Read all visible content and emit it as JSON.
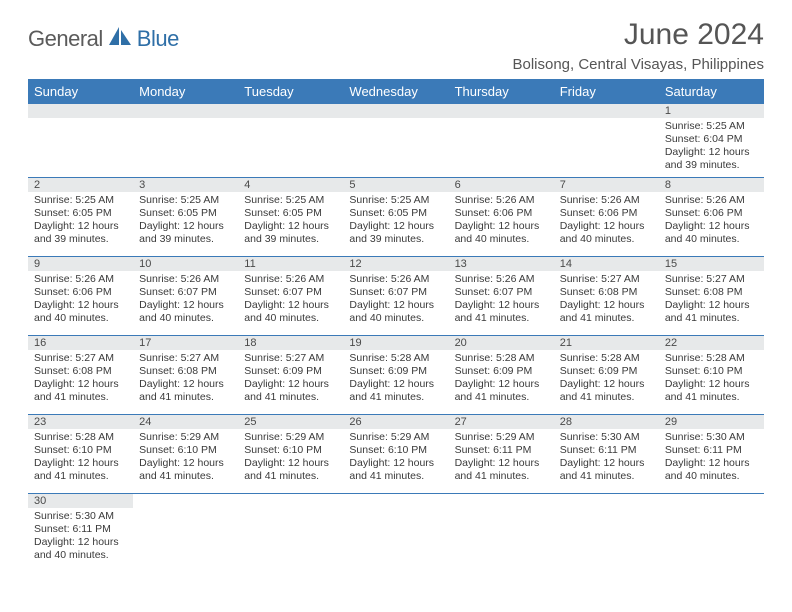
{
  "brand": {
    "part1": "General",
    "part2": "Blue"
  },
  "title": "June 2024",
  "location": "Bolisong, Central Visayas, Philippines",
  "colors": {
    "header_bg": "#3b7ab8",
    "header_text": "#ffffff",
    "daybar_bg": "#e7e9ea",
    "border": "#3b7ab8",
    "page_bg": "#ffffff",
    "text": "#333333",
    "title_text": "#555555"
  },
  "typography": {
    "title_fontsize": 30,
    "location_fontsize": 15,
    "weekday_fontsize": 13,
    "daynum_fontsize": 11,
    "body_fontsize": 10.5,
    "font_family": "Arial"
  },
  "weekdays": [
    "Sunday",
    "Monday",
    "Tuesday",
    "Wednesday",
    "Thursday",
    "Friday",
    "Saturday"
  ],
  "weeks": [
    [
      {
        "n": "",
        "sunrise": "",
        "sunset": "",
        "daylight": ""
      },
      {
        "n": "",
        "sunrise": "",
        "sunset": "",
        "daylight": ""
      },
      {
        "n": "",
        "sunrise": "",
        "sunset": "",
        "daylight": ""
      },
      {
        "n": "",
        "sunrise": "",
        "sunset": "",
        "daylight": ""
      },
      {
        "n": "",
        "sunrise": "",
        "sunset": "",
        "daylight": ""
      },
      {
        "n": "",
        "sunrise": "",
        "sunset": "",
        "daylight": ""
      },
      {
        "n": "1",
        "sunrise": "Sunrise: 5:25 AM",
        "sunset": "Sunset: 6:04 PM",
        "daylight": "Daylight: 12 hours and 39 minutes."
      }
    ],
    [
      {
        "n": "2",
        "sunrise": "Sunrise: 5:25 AM",
        "sunset": "Sunset: 6:05 PM",
        "daylight": "Daylight: 12 hours and 39 minutes."
      },
      {
        "n": "3",
        "sunrise": "Sunrise: 5:25 AM",
        "sunset": "Sunset: 6:05 PM",
        "daylight": "Daylight: 12 hours and 39 minutes."
      },
      {
        "n": "4",
        "sunrise": "Sunrise: 5:25 AM",
        "sunset": "Sunset: 6:05 PM",
        "daylight": "Daylight: 12 hours and 39 minutes."
      },
      {
        "n": "5",
        "sunrise": "Sunrise: 5:25 AM",
        "sunset": "Sunset: 6:05 PM",
        "daylight": "Daylight: 12 hours and 39 minutes."
      },
      {
        "n": "6",
        "sunrise": "Sunrise: 5:26 AM",
        "sunset": "Sunset: 6:06 PM",
        "daylight": "Daylight: 12 hours and 40 minutes."
      },
      {
        "n": "7",
        "sunrise": "Sunrise: 5:26 AM",
        "sunset": "Sunset: 6:06 PM",
        "daylight": "Daylight: 12 hours and 40 minutes."
      },
      {
        "n": "8",
        "sunrise": "Sunrise: 5:26 AM",
        "sunset": "Sunset: 6:06 PM",
        "daylight": "Daylight: 12 hours and 40 minutes."
      }
    ],
    [
      {
        "n": "9",
        "sunrise": "Sunrise: 5:26 AM",
        "sunset": "Sunset: 6:06 PM",
        "daylight": "Daylight: 12 hours and 40 minutes."
      },
      {
        "n": "10",
        "sunrise": "Sunrise: 5:26 AM",
        "sunset": "Sunset: 6:07 PM",
        "daylight": "Daylight: 12 hours and 40 minutes."
      },
      {
        "n": "11",
        "sunrise": "Sunrise: 5:26 AM",
        "sunset": "Sunset: 6:07 PM",
        "daylight": "Daylight: 12 hours and 40 minutes."
      },
      {
        "n": "12",
        "sunrise": "Sunrise: 5:26 AM",
        "sunset": "Sunset: 6:07 PM",
        "daylight": "Daylight: 12 hours and 40 minutes."
      },
      {
        "n": "13",
        "sunrise": "Sunrise: 5:26 AM",
        "sunset": "Sunset: 6:07 PM",
        "daylight": "Daylight: 12 hours and 41 minutes."
      },
      {
        "n": "14",
        "sunrise": "Sunrise: 5:27 AM",
        "sunset": "Sunset: 6:08 PM",
        "daylight": "Daylight: 12 hours and 41 minutes."
      },
      {
        "n": "15",
        "sunrise": "Sunrise: 5:27 AM",
        "sunset": "Sunset: 6:08 PM",
        "daylight": "Daylight: 12 hours and 41 minutes."
      }
    ],
    [
      {
        "n": "16",
        "sunrise": "Sunrise: 5:27 AM",
        "sunset": "Sunset: 6:08 PM",
        "daylight": "Daylight: 12 hours and 41 minutes."
      },
      {
        "n": "17",
        "sunrise": "Sunrise: 5:27 AM",
        "sunset": "Sunset: 6:08 PM",
        "daylight": "Daylight: 12 hours and 41 minutes."
      },
      {
        "n": "18",
        "sunrise": "Sunrise: 5:27 AM",
        "sunset": "Sunset: 6:09 PM",
        "daylight": "Daylight: 12 hours and 41 minutes."
      },
      {
        "n": "19",
        "sunrise": "Sunrise: 5:28 AM",
        "sunset": "Sunset: 6:09 PM",
        "daylight": "Daylight: 12 hours and 41 minutes."
      },
      {
        "n": "20",
        "sunrise": "Sunrise: 5:28 AM",
        "sunset": "Sunset: 6:09 PM",
        "daylight": "Daylight: 12 hours and 41 minutes."
      },
      {
        "n": "21",
        "sunrise": "Sunrise: 5:28 AM",
        "sunset": "Sunset: 6:09 PM",
        "daylight": "Daylight: 12 hours and 41 minutes."
      },
      {
        "n": "22",
        "sunrise": "Sunrise: 5:28 AM",
        "sunset": "Sunset: 6:10 PM",
        "daylight": "Daylight: 12 hours and 41 minutes."
      }
    ],
    [
      {
        "n": "23",
        "sunrise": "Sunrise: 5:28 AM",
        "sunset": "Sunset: 6:10 PM",
        "daylight": "Daylight: 12 hours and 41 minutes."
      },
      {
        "n": "24",
        "sunrise": "Sunrise: 5:29 AM",
        "sunset": "Sunset: 6:10 PM",
        "daylight": "Daylight: 12 hours and 41 minutes."
      },
      {
        "n": "25",
        "sunrise": "Sunrise: 5:29 AM",
        "sunset": "Sunset: 6:10 PM",
        "daylight": "Daylight: 12 hours and 41 minutes."
      },
      {
        "n": "26",
        "sunrise": "Sunrise: 5:29 AM",
        "sunset": "Sunset: 6:10 PM",
        "daylight": "Daylight: 12 hours and 41 minutes."
      },
      {
        "n": "27",
        "sunrise": "Sunrise: 5:29 AM",
        "sunset": "Sunset: 6:11 PM",
        "daylight": "Daylight: 12 hours and 41 minutes."
      },
      {
        "n": "28",
        "sunrise": "Sunrise: 5:30 AM",
        "sunset": "Sunset: 6:11 PM",
        "daylight": "Daylight: 12 hours and 41 minutes."
      },
      {
        "n": "29",
        "sunrise": "Sunrise: 5:30 AM",
        "sunset": "Sunset: 6:11 PM",
        "daylight": "Daylight: 12 hours and 40 minutes."
      }
    ],
    [
      {
        "n": "30",
        "sunrise": "Sunrise: 5:30 AM",
        "sunset": "Sunset: 6:11 PM",
        "daylight": "Daylight: 12 hours and 40 minutes."
      },
      {
        "n": "",
        "sunrise": "",
        "sunset": "",
        "daylight": ""
      },
      {
        "n": "",
        "sunrise": "",
        "sunset": "",
        "daylight": ""
      },
      {
        "n": "",
        "sunrise": "",
        "sunset": "",
        "daylight": ""
      },
      {
        "n": "",
        "sunrise": "",
        "sunset": "",
        "daylight": ""
      },
      {
        "n": "",
        "sunrise": "",
        "sunset": "",
        "daylight": ""
      },
      {
        "n": "",
        "sunrise": "",
        "sunset": "",
        "daylight": ""
      }
    ]
  ]
}
